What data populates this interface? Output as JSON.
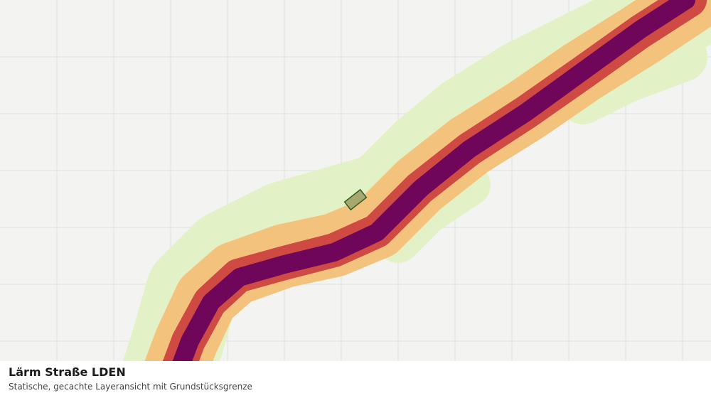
{
  "title": "Lärm Straße LDEN",
  "subtitle": "Statische, gecachte Layeransicht mit Grundstücksgrenze"
}
